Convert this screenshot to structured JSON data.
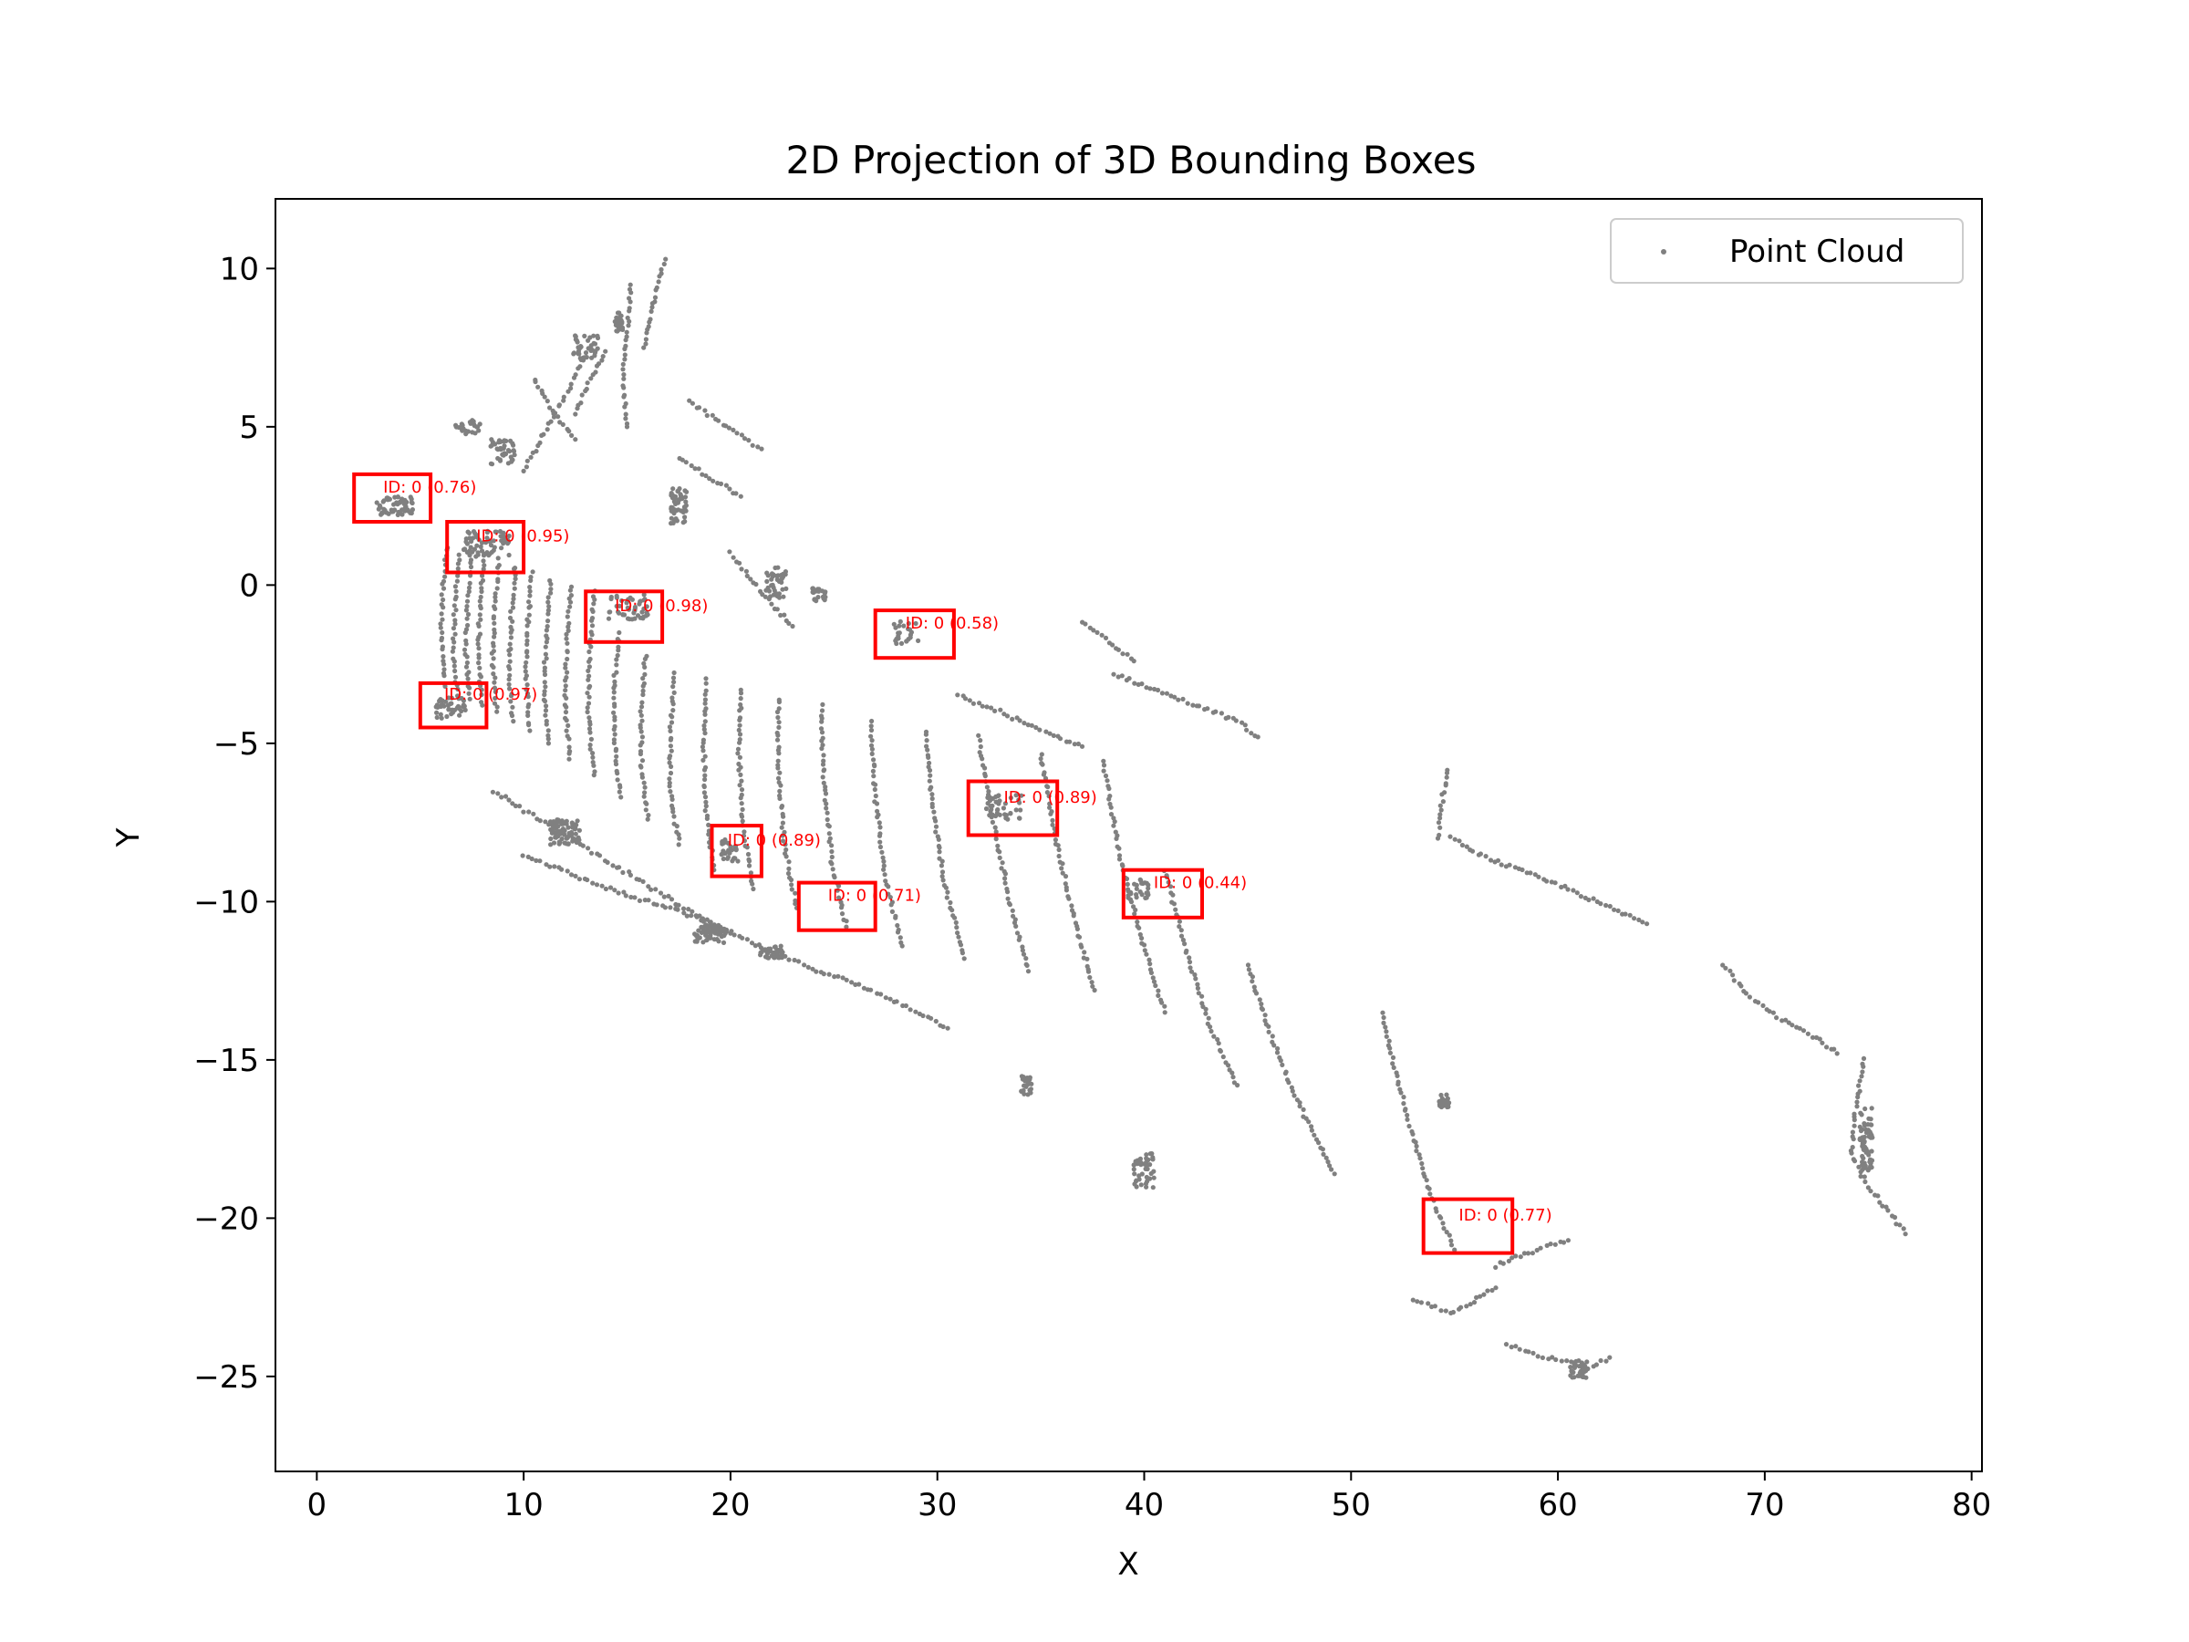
{
  "chart_data": {
    "type": "scatter",
    "title": "2D Projection of 3D Bounding Boxes",
    "xlabel": "X",
    "ylabel": "Y",
    "xlim": [
      -2,
      80.5
    ],
    "ylim": [
      -28,
      12.2
    ],
    "xticks": [
      0,
      10,
      20,
      30,
      40,
      50,
      60,
      70,
      80
    ],
    "yticks": [
      10,
      5,
      0,
      -5,
      -10,
      -15,
      -20,
      -25
    ],
    "xtick_labels": [
      "0",
      "10",
      "20",
      "30",
      "40",
      "50",
      "60",
      "70",
      "80"
    ],
    "ytick_labels": [
      "10",
      "5",
      "0",
      "−5",
      "−10",
      "−15",
      "−20",
      "−25"
    ],
    "grid": false,
    "legend": {
      "position": "top-right",
      "entries": [
        {
          "label": "Point Cloud",
          "color": "#808080"
        }
      ]
    },
    "point_color": "#808080",
    "box_color": "#ff0000",
    "point_cloud": {
      "polylines": [
        [
          [
            6.3,
            1.2
          ],
          [
            6.1,
            0
          ],
          [
            6.0,
            -1.5
          ],
          [
            6.2,
            -3.2
          ]
        ],
        [
          [
            6.9,
            1.0
          ],
          [
            6.7,
            -0.5
          ],
          [
            6.6,
            -2
          ],
          [
            6.8,
            -3.5
          ]
        ],
        [
          [
            7.5,
            1.0
          ],
          [
            7.3,
            -0.5
          ],
          [
            7.2,
            -2
          ],
          [
            7.4,
            -3.6
          ]
        ],
        [
          [
            8.1,
            0.9
          ],
          [
            7.9,
            -0.5
          ],
          [
            7.8,
            -2.2
          ],
          [
            8.0,
            -3.8
          ]
        ],
        [
          [
            8.8,
            0.8
          ],
          [
            8.6,
            -0.8
          ],
          [
            8.5,
            -2.5
          ],
          [
            8.7,
            -4.0
          ]
        ],
        [
          [
            9.6,
            0.6
          ],
          [
            9.4,
            -1.0
          ],
          [
            9.3,
            -2.8
          ],
          [
            9.5,
            -4.3
          ]
        ],
        [
          [
            10.4,
            0.4
          ],
          [
            10.2,
            -1.2
          ],
          [
            10.1,
            -3.0
          ],
          [
            10.3,
            -4.6
          ]
        ],
        [
          [
            11.3,
            0.2
          ],
          [
            11.1,
            -1.4
          ],
          [
            11.0,
            -3.3
          ],
          [
            11.2,
            -5.0
          ]
        ],
        [
          [
            12.3,
            0
          ],
          [
            12.1,
            -1.6
          ],
          [
            12.0,
            -3.6
          ],
          [
            12.2,
            -5.5
          ]
        ],
        [
          [
            13.4,
            -0.2
          ],
          [
            13.2,
            -2.0
          ],
          [
            13.1,
            -4.0
          ],
          [
            13.4,
            -6.0
          ]
        ],
        [
          [
            14.6,
            -1.5
          ],
          [
            14.4,
            -3.0
          ],
          [
            14.4,
            -5.0
          ],
          [
            14.7,
            -6.7
          ]
        ],
        [
          [
            15.9,
            -2.2
          ],
          [
            15.7,
            -3.8
          ],
          [
            15.7,
            -5.8
          ],
          [
            16.0,
            -7.4
          ]
        ],
        [
          [
            17.3,
            -2.8
          ],
          [
            17.1,
            -4.5
          ],
          [
            17.1,
            -6.5
          ],
          [
            17.5,
            -8.2
          ]
        ],
        [
          [
            18.8,
            -3.0
          ],
          [
            18.7,
            -5.0
          ],
          [
            18.8,
            -7.0
          ],
          [
            19.2,
            -9.0
          ]
        ],
        [
          [
            20.5,
            -3.3
          ],
          [
            20.4,
            -5.3
          ],
          [
            20.6,
            -7.5
          ],
          [
            21.1,
            -9.6
          ]
        ],
        [
          [
            22.3,
            -3.6
          ],
          [
            22.3,
            -5.8
          ],
          [
            22.6,
            -8.2
          ],
          [
            23.2,
            -10.2
          ]
        ],
        [
          [
            24.4,
            -3.8
          ],
          [
            24.5,
            -6.2
          ],
          [
            24.9,
            -8.7
          ],
          [
            25.6,
            -10.8
          ]
        ],
        [
          [
            26.8,
            -4.3
          ],
          [
            27.0,
            -6.8
          ],
          [
            27.5,
            -9.3
          ],
          [
            28.3,
            -11.4
          ]
        ],
        [
          [
            29.4,
            -4.6
          ],
          [
            29.8,
            -7.2
          ],
          [
            30.4,
            -9.6
          ],
          [
            31.3,
            -11.8
          ]
        ],
        [
          [
            32.0,
            -4.8
          ],
          [
            32.7,
            -7.5
          ],
          [
            33.5,
            -10.0
          ],
          [
            34.4,
            -12.2
          ]
        ],
        [
          [
            35.0,
            -5.3
          ],
          [
            35.7,
            -8.0
          ],
          [
            36.6,
            -10.5
          ],
          [
            37.6,
            -12.8
          ]
        ],
        [
          [
            38.0,
            -5.6
          ],
          [
            38.8,
            -8.5
          ],
          [
            39.8,
            -11.0
          ],
          [
            41.0,
            -13.5
          ]
        ],
        [
          [
            41.0,
            -9.0
          ],
          [
            42.0,
            -11.5
          ],
          [
            43.2,
            -14.0
          ],
          [
            44.5,
            -15.8
          ]
        ],
        [
          [
            45.0,
            -12.0
          ],
          [
            46.0,
            -14.0
          ],
          [
            47.2,
            -16.0
          ],
          [
            48.3,
            -17.5
          ],
          [
            49.2,
            -18.6
          ]
        ],
        [
          [
            51.5,
            -13.5
          ],
          [
            52.2,
            -15.5
          ],
          [
            53.0,
            -17.5
          ],
          [
            54.0,
            -19.5
          ],
          [
            55.0,
            -21.0
          ]
        ],
        [
          [
            74.8,
            -15.0
          ],
          [
            74.4,
            -16.5
          ],
          [
            74.2,
            -18.0
          ],
          [
            75.0,
            -19.0
          ],
          [
            76.0,
            -19.8
          ],
          [
            76.8,
            -20.5
          ]
        ],
        [
          [
            53.0,
            -22.6
          ],
          [
            55.0,
            -23.0
          ],
          [
            57.0,
            -22.2
          ]
        ],
        [
          [
            57.5,
            -24.0
          ],
          [
            59.5,
            -24.4
          ],
          [
            61.5,
            -24.7
          ],
          [
            62.5,
            -24.4
          ]
        ],
        [
          [
            8.5,
            -6.5
          ],
          [
            11.0,
            -7.5
          ],
          [
            13.5,
            -8.5
          ],
          [
            16.0,
            -9.5
          ],
          [
            18.5,
            -10.5
          ],
          [
            21.0,
            -11.3
          ],
          [
            23.5,
            -12.0
          ],
          [
            26.0,
            -12.6
          ],
          [
            28.5,
            -13.3
          ],
          [
            30.5,
            -14.0
          ]
        ],
        [
          [
            10.0,
            -8.5
          ],
          [
            12.5,
            -9.2
          ],
          [
            15.0,
            -9.8
          ],
          [
            17.5,
            -10.3
          ],
          [
            20.0,
            -11.0
          ]
        ],
        [
          [
            31.0,
            -3.5
          ],
          [
            33.0,
            -4.0
          ],
          [
            35.0,
            -4.6
          ],
          [
            37.0,
            -5.1
          ]
        ],
        [
          [
            38.5,
            -2.8
          ],
          [
            40.5,
            -3.3
          ],
          [
            42.5,
            -3.8
          ],
          [
            44.5,
            -4.3
          ],
          [
            45.5,
            -4.8
          ]
        ],
        [
          [
            54.8,
            -8.0
          ],
          [
            56.5,
            -8.6
          ],
          [
            58.5,
            -9.1
          ],
          [
            60.5,
            -9.6
          ],
          [
            62.5,
            -10.2
          ],
          [
            64.3,
            -10.7
          ]
        ],
        [
          [
            68.0,
            -12.0
          ],
          [
            69.3,
            -13.0
          ],
          [
            70.8,
            -13.7
          ],
          [
            72.5,
            -14.3
          ],
          [
            73.5,
            -14.8
          ]
        ],
        [
          [
            15.2,
            9.5
          ],
          [
            15.0,
            8.0
          ],
          [
            14.8,
            6.5
          ],
          [
            15.0,
            5.0
          ]
        ],
        [
          [
            16.8,
            10.3
          ],
          [
            16.3,
            9.0
          ],
          [
            15.8,
            7.5
          ]
        ],
        [
          [
            17.5,
            4.0
          ],
          [
            19.0,
            3.4
          ],
          [
            20.5,
            2.8
          ]
        ],
        [
          [
            18.0,
            5.8
          ],
          [
            19.8,
            5.0
          ],
          [
            21.5,
            4.3
          ]
        ],
        [
          [
            13.0,
            7.2
          ],
          [
            12.0,
            6.0
          ],
          [
            11.0,
            4.8
          ],
          [
            10.0,
            3.6
          ]
        ],
        [
          [
            14.0,
            7.4
          ],
          [
            13.2,
            6.5
          ],
          [
            12.5,
            5.4
          ]
        ],
        [
          [
            10.5,
            6.5
          ],
          [
            11.5,
            5.4
          ],
          [
            12.5,
            4.6
          ]
        ],
        [
          [
            20.0,
            1.0
          ],
          [
            21.0,
            0.2
          ],
          [
            22.0,
            -0.6
          ],
          [
            23.0,
            -1.3
          ]
        ],
        [
          [
            37.0,
            -1.2
          ],
          [
            38.3,
            -1.8
          ],
          [
            39.5,
            -2.4
          ]
        ],
        [
          [
            54.7,
            -5.8
          ],
          [
            54.4,
            -6.8
          ],
          [
            54.2,
            -8.0
          ]
        ],
        [
          [
            57.0,
            -21.5
          ],
          [
            59.0,
            -21.0
          ],
          [
            60.5,
            -20.7
          ]
        ]
      ],
      "clusters": [
        [
          3.8,
          2.5,
          1.8,
          0.6,
          55
        ],
        [
          8.2,
          1.3,
          2.2,
          0.8,
          60
        ],
        [
          15.0,
          -0.7,
          2.0,
          0.8,
          45
        ],
        [
          6.5,
          -3.9,
          1.5,
          0.7,
          40
        ],
        [
          33.2,
          -7.0,
          1.8,
          0.8,
          40
        ],
        [
          20.0,
          -8.4,
          0.9,
          0.8,
          30
        ],
        [
          28.5,
          -1.5,
          1.2,
          0.7,
          25
        ],
        [
          39.7,
          -9.6,
          1.0,
          0.6,
          25
        ],
        [
          40.0,
          -18.5,
          1.0,
          1.2,
          45
        ],
        [
          34.3,
          -15.8,
          0.5,
          0.6,
          25
        ],
        [
          54.5,
          -16.3,
          0.5,
          0.4,
          25
        ],
        [
          61.0,
          -24.8,
          0.8,
          0.6,
          30
        ],
        [
          74.9,
          -17.5,
          0.6,
          2.0,
          60
        ],
        [
          12.0,
          -7.8,
          1.5,
          0.8,
          70
        ],
        [
          19.0,
          -11.0,
          1.5,
          0.6,
          60
        ],
        [
          22.0,
          -11.6,
          1.2,
          0.4,
          35
        ],
        [
          17.5,
          2.5,
          0.8,
          1.1,
          50
        ],
        [
          13.0,
          7.5,
          1.2,
          0.8,
          40
        ],
        [
          9.0,
          4.2,
          1.2,
          0.8,
          40
        ],
        [
          22.2,
          0.1,
          1.0,
          1.0,
          40
        ],
        [
          14.6,
          8.3,
          0.4,
          0.6,
          25
        ],
        [
          24.3,
          -0.3,
          0.7,
          0.4,
          20
        ],
        [
          7.3,
          5.0,
          1.2,
          0.5,
          25
        ]
      ]
    },
    "boxes": [
      {
        "x0": 1.8,
        "x1": 5.5,
        "y0": 2.0,
        "y1": 3.5,
        "label": "ID: 0 (0.76)"
      },
      {
        "x0": 6.3,
        "x1": 10.0,
        "y0": 0.4,
        "y1": 2.0,
        "label": "ID: 0 (0.95)"
      },
      {
        "x0": 13.0,
        "x1": 16.7,
        "y0": -1.8,
        "y1": -0.2,
        "label": "ID: 0 (0.98)"
      },
      {
        "x0": 5.0,
        "x1": 8.2,
        "y0": -4.5,
        "y1": -3.1,
        "label": "ID: 0 (0.97)"
      },
      {
        "x0": 27.0,
        "x1": 30.8,
        "y0": -2.3,
        "y1": -0.8,
        "label": "ID: 0 (0.58)"
      },
      {
        "x0": 31.5,
        "x1": 35.8,
        "y0": -7.9,
        "y1": -6.2,
        "label": "ID: 0 (0.89)"
      },
      {
        "x0": 19.1,
        "x1": 21.5,
        "y0": -9.2,
        "y1": -7.6,
        "label": "ID: 0 (0.89)"
      },
      {
        "x0": 23.3,
        "x1": 27.0,
        "y0": -10.9,
        "y1": -9.4,
        "label": "ID: 0 (0.71)"
      },
      {
        "x0": 39.0,
        "x1": 42.8,
        "y0": -10.5,
        "y1": -9.0,
        "label": "ID: 0 (0.44)"
      },
      {
        "x0": 53.5,
        "x1": 57.8,
        "y0": -21.1,
        "y1": -19.4,
        "label": "ID: 0 (0.77)"
      }
    ]
  }
}
